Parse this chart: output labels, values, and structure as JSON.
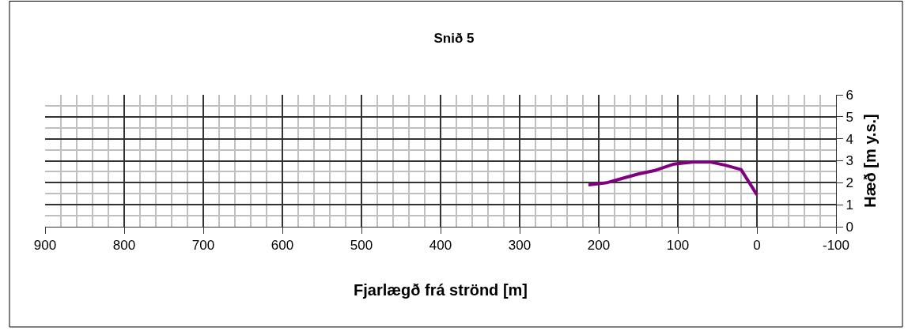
{
  "chart_data": {
    "type": "line",
    "title": "Snið 5",
    "xlabel": "Fjarlægð frá strönd [m]",
    "ylabel": "Hæð [m y.s.]",
    "x": [
      213,
      190,
      170,
      150,
      130,
      105,
      80,
      60,
      40,
      20,
      0
    ],
    "series": [
      {
        "color": "#800080",
        "values": [
          1.9,
          2.0,
          2.2,
          2.4,
          2.55,
          2.85,
          2.95,
          2.95,
          2.8,
          2.6,
          1.45
        ]
      }
    ],
    "xlim": [
      900,
      -100
    ],
    "xticks": [
      900,
      800,
      700,
      600,
      500,
      400,
      300,
      200,
      100,
      0,
      -100
    ],
    "ylim": [
      0,
      6
    ],
    "yticks": [
      0,
      1,
      2,
      3,
      4,
      5,
      6
    ],
    "grid": true,
    "marker": "none",
    "line_style": "solid"
  }
}
